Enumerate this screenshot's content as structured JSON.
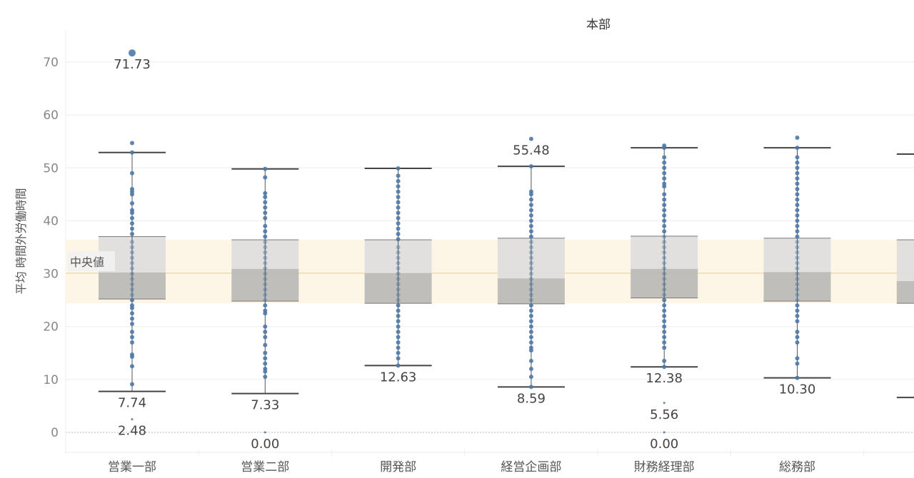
{
  "chart_data": {
    "type": "box",
    "header": "本部",
    "ylabel": "平均 時間外労働時間",
    "ylim": [
      -3.5,
      76
    ],
    "yticks": [
      0,
      10,
      20,
      30,
      40,
      50,
      60,
      70
    ],
    "grid": true,
    "reference_band": {
      "label": "中央値",
      "value": 30.1,
      "low": 24.4,
      "high": 36.4,
      "color": "#fdf5e6",
      "line_color": "#f1dba8"
    },
    "dot_color": "#4e79a7",
    "box_upper_color": "#dedede",
    "box_lower_color": "#bcbab7",
    "categories": [
      {
        "name": "営業一部",
        "whisker_high": 52.9,
        "q3": 37.0,
        "median": 30.2,
        "q1": 25.2,
        "whisker_low": 7.74,
        "labels": [
          {
            "text": "71.73",
            "value": 71.73
          },
          {
            "text": "7.74",
            "value": 7.74
          },
          {
            "text": "2.48",
            "value": 2.48
          }
        ],
        "points": [
          71.73,
          54.7,
          52.9,
          49.0,
          46,
          45.5,
          45,
          43.3,
          42,
          41.5,
          40.5,
          39.5,
          38.5,
          37.5,
          36,
          35,
          34,
          33,
          32,
          31,
          30,
          29,
          28,
          27,
          26,
          25,
          24,
          23.5,
          22.5,
          21.5,
          20.5,
          19,
          18,
          17,
          14.7,
          14.3,
          12.5,
          9.1,
          2.48
        ]
      },
      {
        "name": "営業二部",
        "whisker_high": 49.8,
        "q3": 36.4,
        "median": 30.9,
        "q1": 24.8,
        "whisker_low": 7.33,
        "labels": [
          {
            "text": "7.33",
            "value": 7.33
          },
          {
            "text": "0.00",
            "value": 0.0
          }
        ],
        "points": [
          49.8,
          48.2,
          45.2,
          44.5,
          43.5,
          42.5,
          41.5,
          40.5,
          39,
          38,
          37,
          36,
          35,
          34,
          33,
          32,
          31,
          30,
          29,
          28,
          27,
          26,
          25,
          24,
          23,
          22.5,
          20,
          19,
          18,
          16.5,
          15,
          14,
          13,
          12,
          11.5,
          10.5,
          0.0
        ]
      },
      {
        "name": "開発部",
        "whisker_high": 49.9,
        "q3": 36.4,
        "median": 30.1,
        "q1": 24.4,
        "whisker_low": 12.63,
        "labels": [
          {
            "text": "12.63",
            "value": 12.63
          }
        ],
        "points": [
          49.9,
          48.5,
          47.5,
          46.5,
          45.5,
          44.5,
          43.5,
          42.5,
          41.5,
          40.5,
          39.5,
          38.5,
          37.5,
          36.5,
          35,
          34,
          33,
          32,
          31,
          30,
          29,
          28,
          27,
          26,
          25,
          24,
          23,
          22,
          21,
          20,
          19,
          18,
          17,
          16,
          15,
          14,
          12.63
        ]
      },
      {
        "name": "経営企画部",
        "whisker_high": 50.3,
        "q3": 36.7,
        "median": 29.1,
        "q1": 24.3,
        "whisker_low": 8.59,
        "labels": [
          {
            "text": "55.48",
            "value": 55.48
          },
          {
            "text": "8.59",
            "value": 8.59
          }
        ],
        "points": [
          55.48,
          50.3,
          45.5,
          45,
          44,
          43,
          42,
          41,
          40,
          39,
          38,
          37,
          36,
          35,
          34,
          33,
          32,
          31,
          30,
          29,
          28,
          27,
          26,
          25,
          24,
          23,
          22,
          21,
          20,
          19,
          18,
          17,
          16,
          15.5,
          13.5,
          12,
          10.5,
          8.59
        ]
      },
      {
        "name": "財務経理部",
        "whisker_high": 53.8,
        "q3": 37.1,
        "median": 30.9,
        "q1": 25.4,
        "whisker_low": 12.38,
        "labels": [
          {
            "text": "12.38",
            "value": 12.38
          },
          {
            "text": "5.56",
            "value": 5.56
          },
          {
            "text": "0.00",
            "value": 0.0
          }
        ],
        "points": [
          54.2,
          53.8,
          52,
          51,
          50,
          49,
          48,
          47,
          46.5,
          45,
          44,
          43,
          42,
          41,
          40,
          39,
          38,
          37,
          36,
          35,
          34,
          33,
          32,
          31,
          30,
          29,
          28,
          27,
          26,
          25,
          24,
          23,
          22,
          21,
          20,
          19,
          18,
          17,
          16,
          13.5,
          12.38,
          5.56,
          0.0
        ]
      },
      {
        "name": "総務部",
        "whisker_high": 53.8,
        "q3": 36.7,
        "median": 30.3,
        "q1": 24.8,
        "whisker_low": 10.3,
        "labels": [
          {
            "text": "10.30",
            "value": 10.3
          }
        ],
        "points": [
          55.7,
          53.8,
          52,
          51,
          50,
          49,
          48,
          47,
          46,
          45,
          44,
          43,
          42,
          41,
          40,
          39,
          38,
          37,
          36,
          35,
          34,
          33,
          32,
          31,
          30,
          29,
          28,
          27,
          26,
          25,
          24,
          23,
          22,
          21,
          19,
          18,
          17,
          14,
          13,
          10.3
        ]
      },
      {
        "name": "",
        "whisker_high": 52.6,
        "q3": 36.4,
        "median": 28.6,
        "q1": 24.4,
        "whisker_low": 6.6,
        "labels": [],
        "points": []
      }
    ]
  }
}
